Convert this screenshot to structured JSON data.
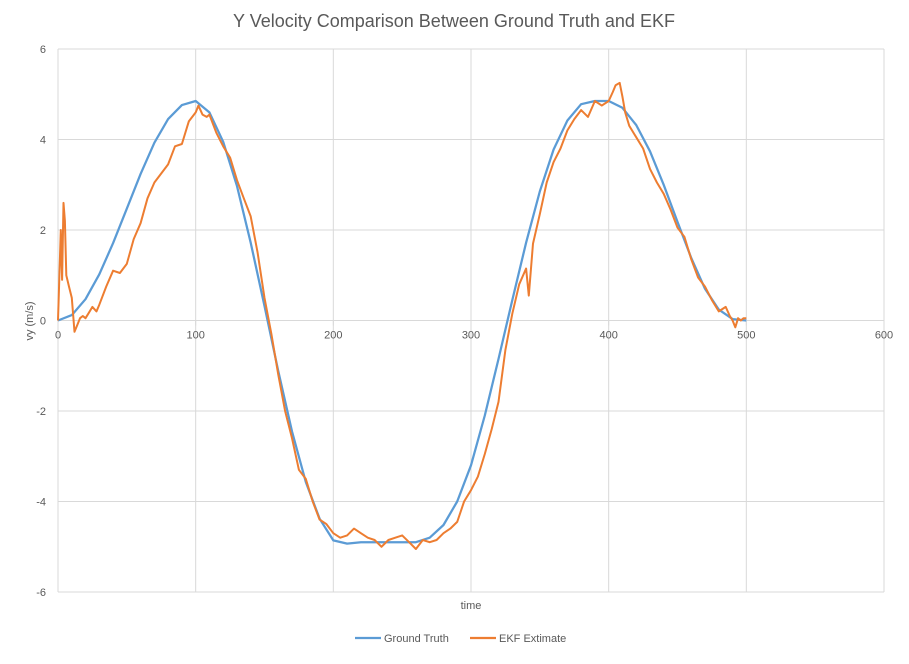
{
  "chart_data": {
    "type": "line",
    "title": "Y Velocity Comparison Between Ground Truth and EKF",
    "xlabel": "time",
    "ylabel": "vy (m/s)",
    "xlim": [
      0,
      600
    ],
    "ylim": [
      -6,
      6
    ],
    "xticks": [
      0,
      100,
      200,
      300,
      400,
      500,
      600
    ],
    "yticks": [
      -6,
      -4,
      -2,
      0,
      2,
      4,
      6
    ],
    "grid": true,
    "legend_position": "bottom",
    "colors": {
      "ground_truth": "#5b9bd5",
      "ekf": "#ed7d31",
      "grid": "#d9d9d9",
      "text": "#595959"
    },
    "series": [
      {
        "name": "Ground Truth",
        "x": [
          0,
          10,
          20,
          30,
          40,
          50,
          60,
          70,
          80,
          90,
          100,
          110,
          120,
          130,
          140,
          150,
          160,
          170,
          180,
          190,
          200,
          210,
          220,
          230,
          240,
          250,
          260,
          270,
          280,
          290,
          300,
          310,
          320,
          330,
          340,
          350,
          360,
          370,
          380,
          390,
          400,
          410,
          420,
          430,
          440,
          450,
          460,
          470,
          480,
          490,
          500
        ],
        "values": [
          0.0,
          0.12,
          0.47,
          1.02,
          1.71,
          2.47,
          3.24,
          3.93,
          4.45,
          4.76,
          4.85,
          4.6,
          3.95,
          2.97,
          1.72,
          0.32,
          -1.12,
          -2.45,
          -3.57,
          -4.38,
          -4.86,
          -4.93,
          -4.9,
          -4.9,
          -4.9,
          -4.9,
          -4.9,
          -4.8,
          -4.52,
          -4.0,
          -3.2,
          -2.1,
          -0.85,
          0.45,
          1.72,
          2.85,
          3.78,
          4.42,
          4.78,
          4.85,
          4.85,
          4.7,
          4.32,
          3.74,
          3.0,
          2.18,
          1.38,
          0.7,
          0.24,
          0.03,
          0.0
        ]
      },
      {
        "name": "EKF Extimate",
        "x": [
          0,
          2,
          3,
          4,
          5,
          6,
          8,
          10,
          12,
          14,
          16,
          18,
          20,
          22,
          25,
          28,
          30,
          35,
          40,
          45,
          50,
          55,
          60,
          65,
          70,
          75,
          80,
          85,
          90,
          95,
          100,
          102,
          105,
          108,
          110,
          115,
          120,
          125,
          130,
          135,
          140,
          145,
          150,
          155,
          160,
          165,
          170,
          175,
          180,
          185,
          190,
          195,
          200,
          205,
          210,
          215,
          220,
          225,
          230,
          235,
          240,
          245,
          250,
          255,
          260,
          265,
          270,
          275,
          280,
          285,
          290,
          295,
          300,
          305,
          310,
          315,
          320,
          325,
          330,
          335,
          340,
          342,
          345,
          350,
          355,
          360,
          365,
          370,
          375,
          380,
          385,
          390,
          395,
          400,
          403,
          405,
          408,
          410,
          412,
          415,
          420,
          425,
          430,
          435,
          440,
          445,
          450,
          455,
          460,
          465,
          470,
          475,
          480,
          485,
          488,
          490,
          492,
          494,
          496,
          498,
          500
        ],
        "values": [
          0.0,
          2.0,
          0.9,
          2.6,
          2.2,
          1.0,
          0.75,
          0.5,
          -0.25,
          -0.1,
          0.05,
          0.1,
          0.05,
          0.15,
          0.3,
          0.2,
          0.35,
          0.75,
          1.1,
          1.05,
          1.25,
          1.8,
          2.15,
          2.7,
          3.05,
          3.25,
          3.45,
          3.85,
          3.9,
          4.4,
          4.6,
          4.75,
          4.55,
          4.5,
          4.55,
          4.15,
          3.85,
          3.6,
          3.1,
          2.7,
          2.3,
          1.5,
          0.5,
          -0.3,
          -1.2,
          -2.0,
          -2.6,
          -3.3,
          -3.5,
          -4.0,
          -4.4,
          -4.5,
          -4.7,
          -4.8,
          -4.75,
          -4.6,
          -4.7,
          -4.8,
          -4.85,
          -5.0,
          -4.85,
          -4.8,
          -4.75,
          -4.9,
          -5.05,
          -4.85,
          -4.9,
          -4.85,
          -4.7,
          -4.6,
          -4.45,
          -4.0,
          -3.75,
          -3.45,
          -2.95,
          -2.4,
          -1.8,
          -0.65,
          0.15,
          0.8,
          1.15,
          0.55,
          1.7,
          2.35,
          3.05,
          3.5,
          3.8,
          4.2,
          4.45,
          4.65,
          4.5,
          4.85,
          4.75,
          4.85,
          5.05,
          5.2,
          5.25,
          4.95,
          4.6,
          4.3,
          4.05,
          3.8,
          3.35,
          3.05,
          2.8,
          2.45,
          2.05,
          1.85,
          1.35,
          0.95,
          0.75,
          0.45,
          0.2,
          0.3,
          0.1,
          0.0,
          -0.15,
          0.05,
          0.0,
          0.05,
          0.05
        ]
      }
    ]
  }
}
